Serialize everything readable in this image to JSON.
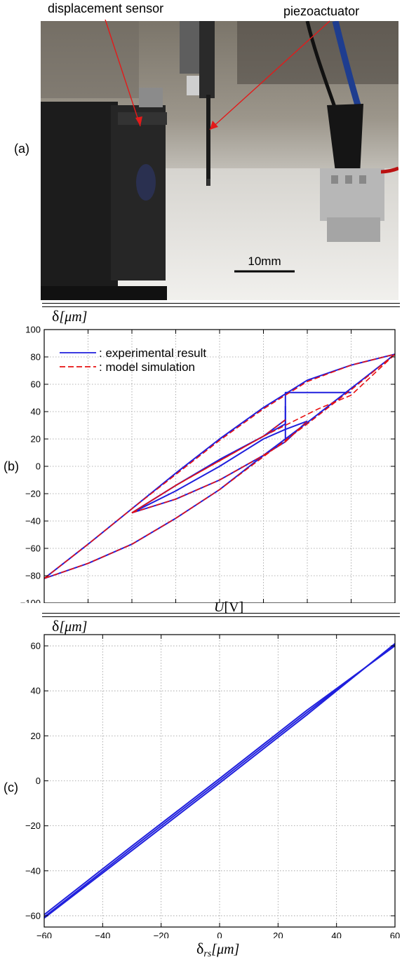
{
  "panel_a": {
    "letter": "(a)",
    "label_sensor": "displacement sensor",
    "label_actuator": "piezoactuator",
    "scale_bar": "10mm"
  },
  "panel_b": {
    "letter": "(b)",
    "ylabel_symbol": "δ",
    "ylabel_unit": "[μm]",
    "xlabel_symbol": "U",
    "xlabel_unit": "[V]"
  },
  "panel_c": {
    "letter": "(c)",
    "ylabel_symbol": "δ",
    "ylabel_unit": "[μm]",
    "xlabel_symbol": "δ",
    "xlabel_sub": "rs",
    "xlabel_unit": "[μm]"
  },
  "colors": {
    "experimental": "#1f1fdd",
    "model": "#e81010",
    "grid": "#9a9a9a"
  },
  "chart_data": [
    {
      "id": "b",
      "type": "line",
      "title": "",
      "xlabel": "U[V]",
      "ylabel": "δ[μm]",
      "xlim": [
        -80,
        80
      ],
      "ylim": [
        -100,
        100
      ],
      "xticks": [
        -80,
        -60,
        -40,
        -20,
        0,
        20,
        40,
        60,
        80
      ],
      "yticks": [
        -100,
        -80,
        -60,
        -40,
        -20,
        0,
        20,
        40,
        60,
        80,
        100
      ],
      "grid": true,
      "legend_position": "top-left",
      "series": [
        {
          "name": "experimental result",
          "style": "solid",
          "color": "#1f1fdd",
          "segments": [
            [
              [
                -80,
                -82
              ],
              [
                -60,
                -57
              ],
              [
                -40,
                -31
              ],
              [
                -20,
                -5
              ],
              [
                0,
                20
              ],
              [
                20,
                43
              ],
              [
                40,
                63
              ],
              [
                60,
                74
              ],
              [
                80,
                82
              ]
            ],
            [
              [
                80,
                82
              ],
              [
                60,
                57
              ],
              [
                40,
                32
              ],
              [
                20,
                8
              ],
              [
                0,
                -17
              ],
              [
                -20,
                -38
              ],
              [
                -40,
                -57
              ],
              [
                -60,
                -71
              ],
              [
                -80,
                -82
              ]
            ],
            [
              [
                -40,
                -34
              ],
              [
                -20,
                -14
              ],
              [
                0,
                5
              ],
              [
                20,
                22
              ],
              [
                30,
                31
              ],
              [
                30,
                54
              ],
              [
                60,
                54
              ]
            ],
            [
              [
                30,
                34
              ],
              [
                20,
                22
              ],
              [
                0,
                5
              ],
              [
                -20,
                -14
              ],
              [
                -40,
                -34
              ]
            ],
            [
              [
                -40,
                -34
              ],
              [
                -20,
                -24
              ],
              [
                0,
                -10
              ],
              [
                20,
                8
              ],
              [
                30,
                18
              ],
              [
                40,
                33
              ]
            ],
            [
              [
                40,
                33
              ],
              [
                30,
                27
              ],
              [
                20,
                20
              ],
              [
                0,
                0
              ],
              [
                -20,
                -18
              ],
              [
                -40,
                -34
              ]
            ],
            [
              [
                30,
                20
              ],
              [
                30,
                44
              ]
            ]
          ]
        },
        {
          "name": "model simulation",
          "style": "dashed",
          "color": "#e81010",
          "segments": [
            [
              [
                -80,
                -82
              ],
              [
                -60,
                -57
              ],
              [
                -40,
                -31
              ],
              [
                -20,
                -6
              ],
              [
                0,
                19
              ],
              [
                20,
                42
              ],
              [
                40,
                62
              ],
              [
                60,
                74
              ],
              [
                80,
                82
              ]
            ],
            [
              [
                80,
                82
              ],
              [
                60,
                56
              ],
              [
                40,
                31
              ],
              [
                20,
                7
              ],
              [
                0,
                -17
              ],
              [
                -20,
                -38
              ],
              [
                -40,
                -57
              ],
              [
                -60,
                -71
              ],
              [
                -80,
                -82
              ]
            ],
            [
              [
                -40,
                -34
              ],
              [
                -20,
                -14
              ],
              [
                0,
                4
              ],
              [
                20,
                22
              ],
              [
                30,
                30
              ],
              [
                45,
                42
              ],
              [
                60,
                52
              ],
              [
                80,
                82
              ]
            ],
            [
              [
                30,
                34
              ],
              [
                20,
                22
              ],
              [
                0,
                4
              ],
              [
                -20,
                -14
              ],
              [
                -40,
                -34
              ]
            ],
            [
              [
                -40,
                -34
              ],
              [
                -20,
                -24
              ],
              [
                0,
                -10
              ],
              [
                20,
                8
              ],
              [
                30,
                18
              ],
              [
                40,
                33
              ]
            ]
          ]
        }
      ]
    },
    {
      "id": "c",
      "type": "line",
      "title": "",
      "xlabel": "δrs[μm]",
      "ylabel": "δ[μm]",
      "xlim": [
        -60,
        60
      ],
      "ylim": [
        -65,
        65
      ],
      "xticks": [
        -60,
        -40,
        -20,
        0,
        20,
        40,
        60
      ],
      "yticks": [
        -60,
        -40,
        -20,
        0,
        20,
        40,
        60
      ],
      "grid": true,
      "series": [
        {
          "style": "solid",
          "color": "#1f1fdd",
          "segments": [
            [
              [
                -60,
                -61
              ],
              [
                -30,
                -31
              ],
              [
                0,
                -1
              ],
              [
                30,
                29.5
              ],
              [
                60,
                61
              ]
            ],
            [
              [
                -60,
                -59.5
              ],
              [
                -30,
                -29
              ],
              [
                0,
                1
              ],
              [
                30,
                31.5
              ],
              [
                60,
                60
              ]
            ],
            [
              [
                -60,
                -60.5
              ],
              [
                -30,
                -30
              ],
              [
                0,
                0
              ],
              [
                30,
                30.5
              ],
              [
                60,
                60.5
              ]
            ]
          ]
        }
      ]
    }
  ]
}
